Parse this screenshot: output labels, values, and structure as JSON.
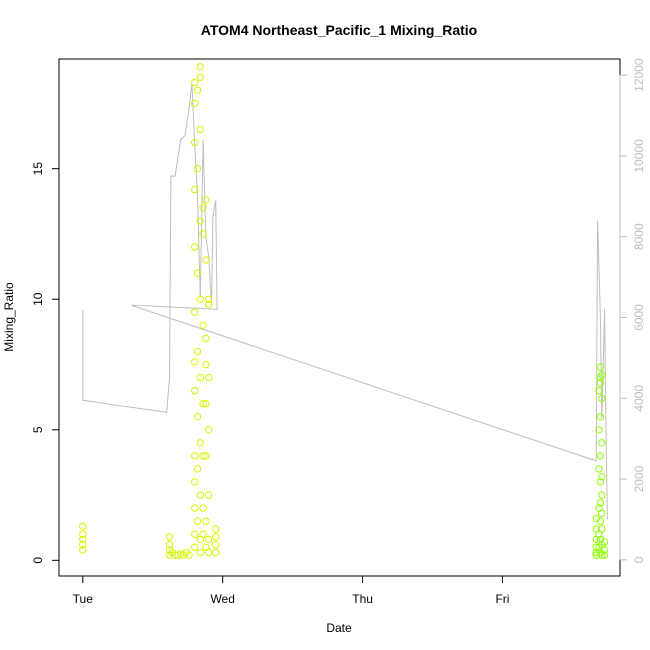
{
  "chart_data": {
    "type": "scatter",
    "title": "ATOM4 Northeast_Pacific_1 Mixing_Ratio",
    "xlabel": "Date",
    "ylabel": "Mixing_Ratio",
    "x_ticks": [
      "Tue",
      "Wed",
      "Thu",
      "Fri"
    ],
    "x_range_days": [
      -0.17,
      3.84
    ],
    "y_ticks": [
      0,
      5,
      10,
      15
    ],
    "ylim": [
      -0.6,
      19.2
    ],
    "y2_ticks": [
      0,
      2000,
      4000,
      6000,
      8000,
      10000,
      12000
    ],
    "y2lim": [
      -400,
      12400
    ],
    "grid": false,
    "colors": {
      "points_early": "#d8f500",
      "points_late": "#8cff00",
      "altitude_line": "#bebebe",
      "frame": "#000000",
      "right_axis": "#bebebe"
    },
    "series": [
      {
        "kind": "altitude",
        "axis": "right",
        "points": [
          [
            0.0,
            6200
          ],
          [
            0.0,
            3950
          ],
          [
            0.6,
            3650
          ],
          [
            0.62,
            4500
          ],
          [
            0.63,
            9500
          ],
          [
            0.66,
            9500
          ],
          [
            0.7,
            10400
          ],
          [
            0.73,
            10500
          ],
          [
            0.76,
            11200
          ],
          [
            0.78,
            11800
          ],
          [
            0.8,
            10300
          ],
          [
            0.82,
            9000
          ],
          [
            0.84,
            6500
          ],
          [
            0.86,
            10400
          ],
          [
            0.88,
            8000
          ],
          [
            0.9,
            7500
          ],
          [
            0.92,
            6300
          ],
          [
            0.93,
            8500
          ],
          [
            0.95,
            8900
          ],
          [
            0.96,
            6200
          ],
          [
            0.4,
            6300
          ],
          [
            0.35,
            6300
          ],
          [
            3.67,
            2450
          ],
          [
            3.68,
            8400
          ],
          [
            3.7,
            6000
          ],
          [
            3.71,
            3500
          ],
          [
            3.73,
            6200
          ],
          [
            3.74,
            3200
          ],
          [
            3.75,
            1000
          ]
        ]
      },
      {
        "kind": "mixing_ratio",
        "axis": "left",
        "points": [
          [
            0.0,
            1.3
          ],
          [
            0.0,
            1.0
          ],
          [
            0.0,
            0.8
          ],
          [
            0.0,
            0.6
          ],
          [
            0.0,
            0.4
          ],
          [
            0.62,
            0.9
          ],
          [
            0.62,
            0.6
          ],
          [
            0.62,
            0.4
          ],
          [
            0.62,
            0.2
          ],
          [
            0.64,
            0.3
          ],
          [
            0.66,
            0.2
          ],
          [
            0.68,
            0.2
          ],
          [
            0.7,
            0.25
          ],
          [
            0.72,
            0.2
          ],
          [
            0.74,
            0.3
          ],
          [
            0.76,
            0.2
          ],
          [
            0.8,
            18.3
          ],
          [
            0.8,
            17.5
          ],
          [
            0.8,
            16.0
          ],
          [
            0.8,
            14.2
          ],
          [
            0.8,
            12.0
          ],
          [
            0.8,
            9.5
          ],
          [
            0.8,
            7.6
          ],
          [
            0.8,
            6.5
          ],
          [
            0.8,
            4.0
          ],
          [
            0.8,
            3.0
          ],
          [
            0.8,
            2.0
          ],
          [
            0.8,
            1.0
          ],
          [
            0.8,
            0.5
          ],
          [
            0.82,
            18.0
          ],
          [
            0.82,
            15.0
          ],
          [
            0.82,
            11.0
          ],
          [
            0.82,
            8.0
          ],
          [
            0.82,
            5.5
          ],
          [
            0.82,
            3.5
          ],
          [
            0.82,
            1.5
          ],
          [
            0.84,
            18.9
          ],
          [
            0.84,
            18.5
          ],
          [
            0.84,
            16.5
          ],
          [
            0.84,
            13.0
          ],
          [
            0.84,
            10.0
          ],
          [
            0.84,
            7.0
          ],
          [
            0.84,
            4.5
          ],
          [
            0.84,
            2.5
          ],
          [
            0.84,
            0.8
          ],
          [
            0.84,
            0.3
          ],
          [
            0.86,
            13.5
          ],
          [
            0.86,
            12.5
          ],
          [
            0.86,
            9.0
          ],
          [
            0.86,
            6.0
          ],
          [
            0.86,
            4.0
          ],
          [
            0.86,
            2.0
          ],
          [
            0.86,
            1.0
          ],
          [
            0.88,
            13.8
          ],
          [
            0.88,
            11.5
          ],
          [
            0.88,
            8.5
          ],
          [
            0.88,
            7.5
          ],
          [
            0.88,
            6.0
          ],
          [
            0.88,
            4.0
          ],
          [
            0.88,
            1.5
          ],
          [
            0.88,
            0.5
          ],
          [
            0.9,
            10.0
          ],
          [
            0.9,
            9.8
          ],
          [
            0.9,
            7.0
          ],
          [
            0.9,
            5.0
          ],
          [
            0.9,
            2.5
          ],
          [
            0.9,
            0.8
          ],
          [
            0.9,
            0.3
          ],
          [
            0.95,
            1.2
          ],
          [
            0.95,
            0.9
          ],
          [
            0.95,
            0.6
          ],
          [
            0.95,
            0.3
          ],
          [
            3.67,
            1.6
          ],
          [
            3.67,
            1.2
          ],
          [
            3.67,
            0.8
          ],
          [
            3.67,
            0.5
          ],
          [
            3.67,
            0.3
          ],
          [
            3.67,
            0.2
          ],
          [
            3.69,
            6.5
          ],
          [
            3.69,
            5.0
          ],
          [
            3.69,
            3.5
          ],
          [
            3.69,
            2.0
          ],
          [
            3.69,
            1.0
          ],
          [
            3.69,
            0.5
          ],
          [
            3.7,
            7.4
          ],
          [
            3.7,
            7.0
          ],
          [
            3.7,
            6.8
          ],
          [
            3.7,
            5.5
          ],
          [
            3.7,
            4.0
          ],
          [
            3.7,
            3.0
          ],
          [
            3.7,
            2.2
          ],
          [
            3.7,
            1.5
          ],
          [
            3.7,
            0.8
          ],
          [
            3.7,
            0.3
          ],
          [
            3.71,
            7.1
          ],
          [
            3.71,
            6.2
          ],
          [
            3.71,
            4.5
          ],
          [
            3.71,
            3.2
          ],
          [
            3.71,
            2.5
          ],
          [
            3.71,
            1.8
          ],
          [
            3.71,
            1.2
          ],
          [
            3.71,
            0.6
          ],
          [
            3.71,
            0.2
          ],
          [
            3.73,
            0.7
          ],
          [
            3.73,
            0.4
          ],
          [
            3.73,
            0.2
          ]
        ]
      }
    ]
  }
}
